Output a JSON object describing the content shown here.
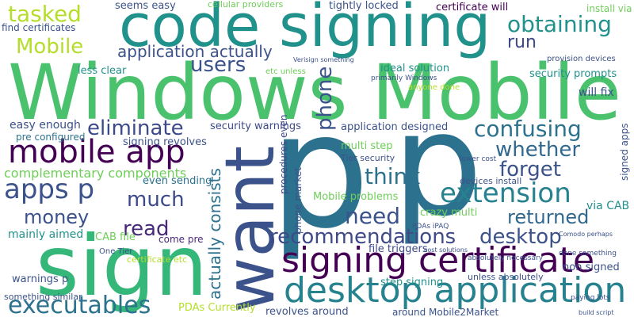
{
  "words": [
    "Windows Mobile",
    "code signing",
    "p",
    "p",
    "want",
    "sign",
    "signing certificate",
    "desktop application",
    "mobile app",
    "apps p",
    "executables",
    "extension",
    "confusing",
    "whether",
    "forget",
    "eliminate",
    "users",
    "tasked",
    "Mobile",
    "obtaining",
    "run",
    "application actually",
    "phone",
    "think",
    "need",
    "recommendations",
    "desktop",
    "returned",
    "much",
    "money",
    "read",
    "actually consists",
    "complementary components",
    "easy enough",
    "pre configured",
    "security warnings",
    "signing revolves",
    "even sending",
    "CAB file",
    "come pre",
    "mainly aimed",
    "One Tier",
    "certificate etc",
    "warnings p",
    "something similar",
    "PDAs Currently",
    "revolves around",
    "around Mobile2Market",
    "step signing",
    "file triggers",
    "unless absolutely",
    "non signed",
    "crazy multi",
    "Mobile problems",
    "multi step",
    "Tier security",
    "application designed",
    "ideal solution",
    "primarily Windows",
    "anyone done",
    "security prompts",
    "provision devices",
    "will fix",
    "certificate will",
    "install via",
    "tightly locked",
    "cellular providers",
    "seems easy",
    "find certificates",
    "less clear",
    "etc unless",
    "Verisign something",
    "via CAB",
    "signed apps",
    "devices install",
    "lower cost",
    "Comodo perhaps",
    "done something",
    "paying lots",
    "build script",
    "absolutely necessary",
    "PDAs iPAQ",
    "cost solutions",
    "procedures even",
    "phone market"
  ]
}
